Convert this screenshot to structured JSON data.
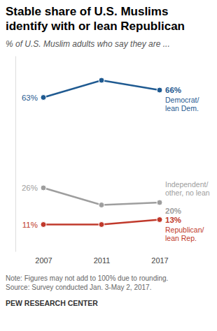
{
  "chart_data": {
    "type": "line",
    "title": "Stable share of U.S. Muslims identify with or lean Republican",
    "subtitle": "% of U.S. Muslim adults who say they are ...",
    "annotations": [
      "Note: Figures may not add to 100% due to rounding.",
      "Source: Survey conducted Jan. 3-May 2, 2017.",
      "PEW RESEARCH CENTER"
    ],
    "categories": [
      "2007",
      "2011",
      "2017"
    ],
    "series": [
      {
        "name": "Democrat/ lean Dem.",
        "color": "#1f5a91",
        "values": [
          63,
          70,
          66
        ],
        "value_labels": [
          "63%",
          null,
          "66%"
        ]
      },
      {
        "name": "Independent/ other, no lean",
        "color": "#9e9e9e",
        "values": [
          26,
          19,
          20
        ],
        "value_labels": [
          "26%",
          null,
          "20%"
        ]
      },
      {
        "name": "Republican/ lean Rep.",
        "color": "#c0392b",
        "values": [
          11,
          11,
          13
        ],
        "value_labels": [
          "11%",
          null,
          "13%"
        ]
      }
    ],
    "ylim": [
      0,
      80
    ],
    "tick_labels": "x",
    "marker": "circle",
    "data_labels": true
  }
}
